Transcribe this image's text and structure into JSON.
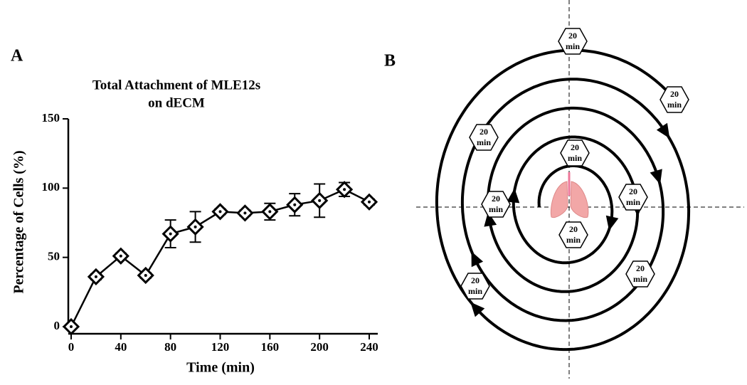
{
  "panels": [
    "A",
    "B"
  ],
  "chart_data": {
    "type": "line",
    "title": [
      "Total Attachment of MLE12s",
      "on dECM"
    ],
    "x_label": "Time (min)",
    "y_label": "Percentage of Cells (%)",
    "x": [
      0,
      20,
      40,
      60,
      80,
      100,
      120,
      140,
      160,
      180,
      200,
      220,
      240
    ],
    "values": [
      0,
      36,
      51,
      37,
      67,
      72,
      83,
      82,
      83,
      88,
      91,
      99,
      90
    ],
    "errors": [
      0,
      2,
      2,
      2,
      10,
      11,
      2,
      2,
      6,
      8,
      12,
      5,
      2
    ],
    "color": "#000000",
    "xlim": [
      0,
      240
    ],
    "xticks": [
      0,
      40,
      80,
      120,
      160,
      200,
      240
    ],
    "ylim": [
      0,
      150
    ],
    "yticks": [
      0,
      50,
      100,
      150
    ],
    "grid": false
  },
  "diagram": {
    "hexagons": [
      [
        "20",
        "min"
      ],
      [
        "20",
        "min"
      ],
      [
        "20",
        "min"
      ],
      [
        "20",
        "min"
      ],
      [
        "20",
        "min"
      ],
      [
        "20",
        "min"
      ],
      [
        "20",
        "min"
      ],
      [
        "20",
        "min"
      ],
      [
        "20",
        "min"
      ]
    ]
  }
}
